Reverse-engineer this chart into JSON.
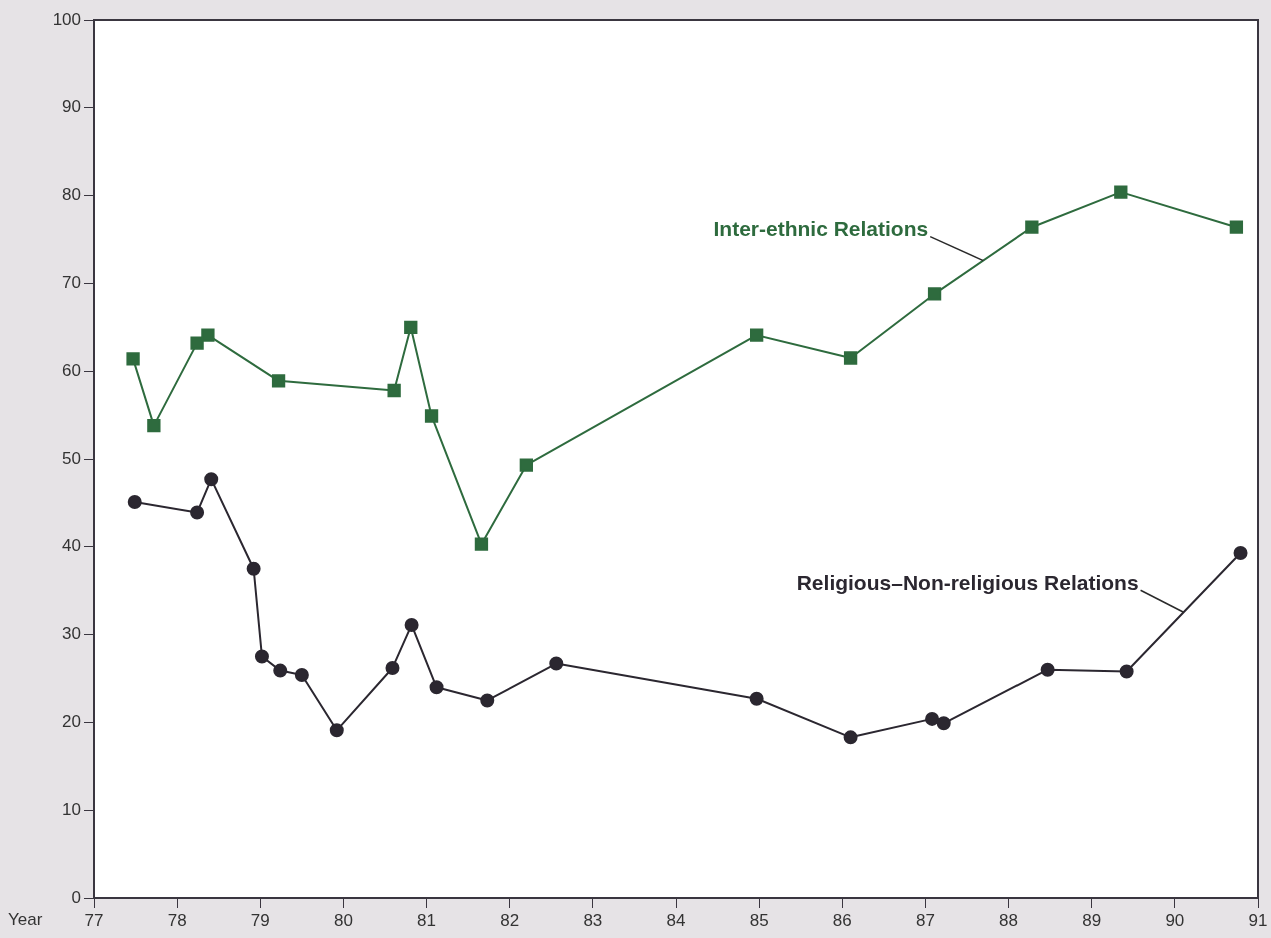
{
  "chart_data": {
    "type": "line",
    "xlabel": "Year",
    "xlim": [
      77,
      91
    ],
    "xticks": [
      77,
      78,
      79,
      80,
      81,
      82,
      83,
      84,
      85,
      86,
      87,
      88,
      89,
      90,
      91
    ],
    "ylim": [
      0,
      100
    ],
    "yticks": [
      0,
      10,
      20,
      30,
      40,
      50,
      60,
      70,
      80,
      90,
      100
    ],
    "grid": false,
    "legend": false,
    "line_style": "solid",
    "series": [
      {
        "name": "Inter-ethnic Relations",
        "color": "#2e6b3e",
        "marker": "square",
        "x": [
          77.47,
          77.72,
          78.24,
          78.37,
          79.22,
          80.61,
          80.81,
          81.06,
          81.66,
          82.2,
          84.97,
          86.1,
          87.11,
          88.28,
          89.35,
          90.74
        ],
        "values": [
          61.4,
          53.8,
          63.2,
          64.1,
          58.9,
          57.8,
          65.0,
          54.9,
          40.3,
          49.3,
          64.1,
          61.5,
          68.8,
          76.4,
          80.4,
          76.4
        ]
      },
      {
        "name": "Religious–Non-religious Relations",
        "color": "#2b2730",
        "marker": "circle",
        "x": [
          77.49,
          78.24,
          78.41,
          78.92,
          79.02,
          79.24,
          79.5,
          79.92,
          80.59,
          80.82,
          81.12,
          81.73,
          82.56,
          84.97,
          86.1,
          87.08,
          87.22,
          88.47,
          89.42,
          90.79
        ],
        "values": [
          45.1,
          43.9,
          47.7,
          37.5,
          27.5,
          25.9,
          25.4,
          19.1,
          26.2,
          31.1,
          24.0,
          22.5,
          26.7,
          22.7,
          18.3,
          20.4,
          19.9,
          26.0,
          25.8,
          39.3
        ]
      }
    ]
  }
}
